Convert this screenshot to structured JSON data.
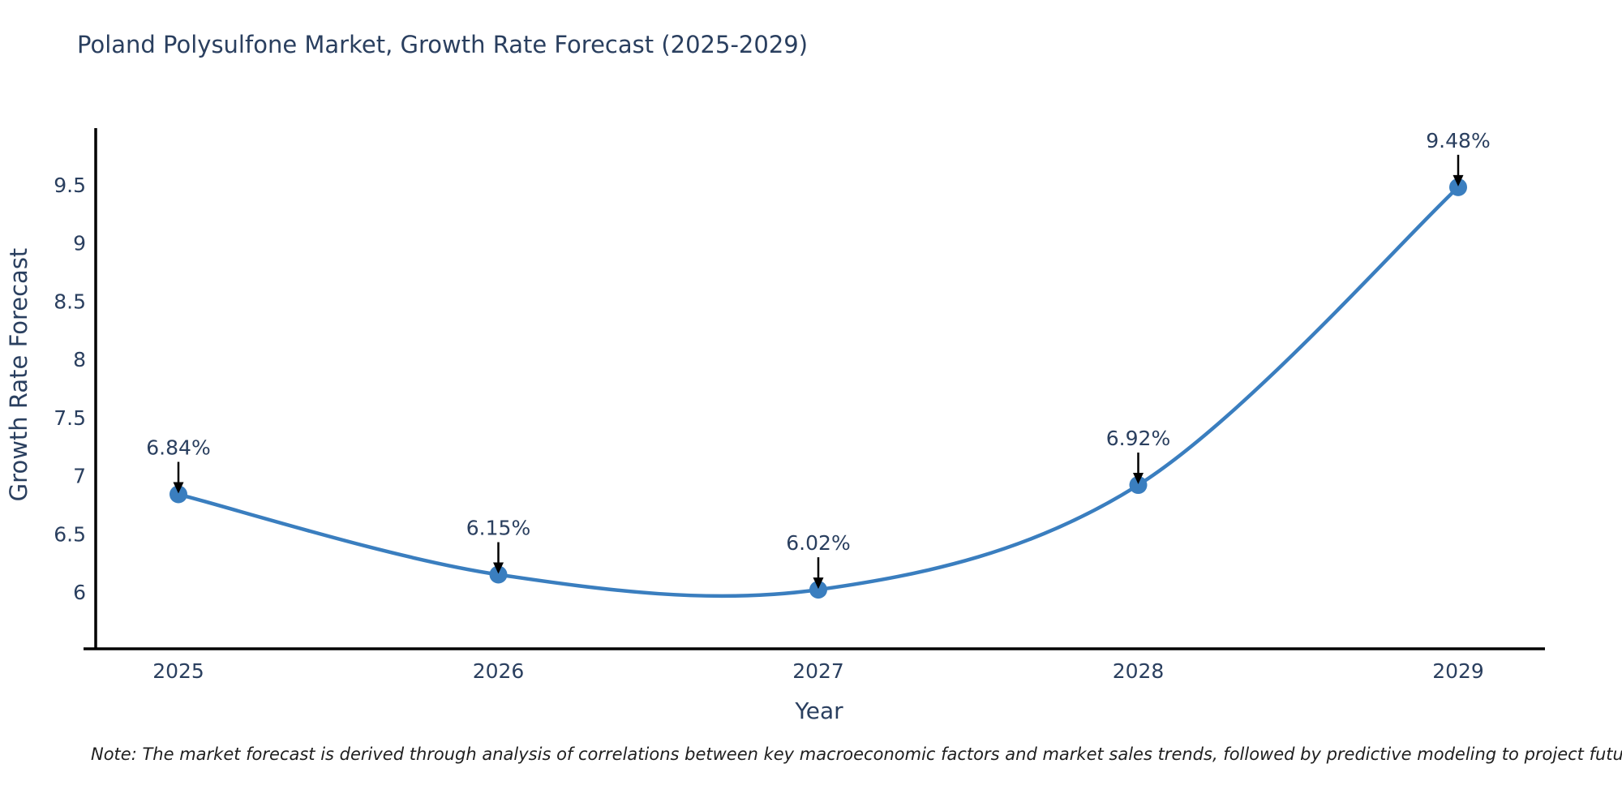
{
  "title": "Poland Polysulfone Market, Growth Rate Forecast (2025-2029)",
  "note": "Note: The market forecast is derived through analysis of correlations between key macroeconomic factors and market sales trends, followed by predictive modeling to project future sales",
  "chart_data": {
    "type": "line",
    "title": "Poland Polysulfone Market, Growth Rate Forecast (2025-2029)",
    "xlabel": "Year",
    "ylabel": "Growth Rate Forecast",
    "x": [
      2025,
      2026,
      2027,
      2028,
      2029
    ],
    "series": [
      {
        "name": "Growth Rate Forecast (%)",
        "values": [
          6.84,
          6.15,
          6.02,
          6.92,
          9.48
        ]
      }
    ],
    "point_labels": [
      "6.84%",
      "6.15%",
      "6.02%",
      "6.92%",
      "9.48%"
    ],
    "yticks": [
      6,
      6.5,
      7,
      7.5,
      8,
      8.5,
      9,
      9.5
    ],
    "ylim": [
      5.5,
      10.0
    ],
    "grid": false,
    "line_style": "spline",
    "marker": "circle",
    "annotation_arrows": true,
    "legend": "none",
    "colors": {
      "line": "#3a7ebf",
      "marker": "#3a7ebf",
      "axis": "#000000",
      "text": "#2a3f5f",
      "annotation_arrow": "#000000",
      "background": "#ffffff"
    }
  }
}
